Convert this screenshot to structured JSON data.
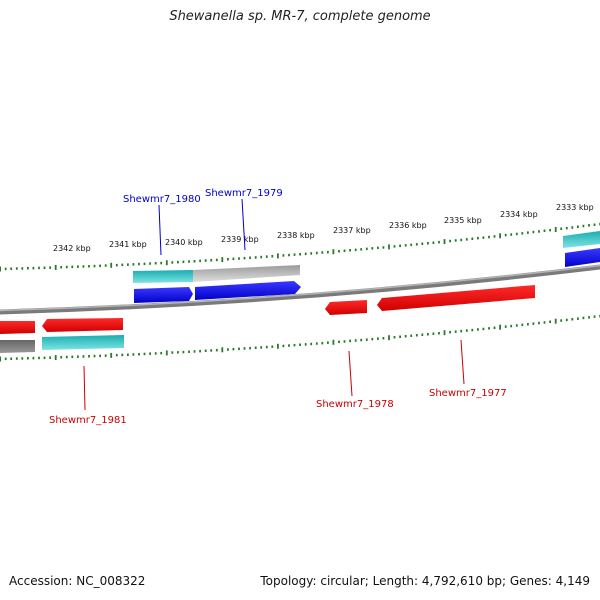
{
  "title_prefix": "Shewanella sp. MR-7, complete genome",
  "footer": {
    "accession": "Accession: NC_008322",
    "stats": "Topology: circular; Length: 4,792,610 bp; Genes: 4,149"
  },
  "colors": {
    "forward_cds": "#0000ee",
    "reverse_cds": "#ee0000",
    "forward_label": "#0000cc",
    "reverse_label": "#cc0000",
    "tick": "#2a7a2a",
    "backbone": "#888888",
    "teal": "#1fb8b8",
    "gray_bar": "#bdbdbd"
  },
  "ticks": [
    {
      "label": "2342 kbp"
    },
    {
      "label": "2341 kbp"
    },
    {
      "label": "2340 kbp"
    },
    {
      "label": "2339 kbp"
    },
    {
      "label": "2338 kbp"
    },
    {
      "label": "2337 kbp"
    },
    {
      "label": "2336 kbp"
    },
    {
      "label": "2335 kbp"
    },
    {
      "label": "2334 kbp"
    },
    {
      "label": "2333 kbp"
    }
  ],
  "genes": [
    {
      "name": "Shewmr7_1980",
      "strand": "forward"
    },
    {
      "name": "Shewmr7_1979",
      "strand": "forward"
    },
    {
      "name": "Shewmr7_1981",
      "strand": "reverse"
    },
    {
      "name": "Shewmr7_1978",
      "strand": "reverse"
    },
    {
      "name": "Shewmr7_1977",
      "strand": "reverse"
    }
  ]
}
